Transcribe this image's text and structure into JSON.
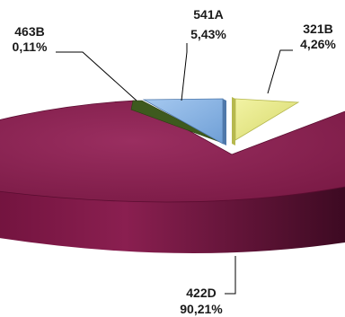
{
  "chart_data": {
    "type": "pie",
    "style": "3d-exploded",
    "title": "",
    "slices": [
      {
        "name": "422D",
        "value": 90.21,
        "label": "90,21%",
        "color": "#8b1e4f"
      },
      {
        "name": "321B",
        "value": 4.26,
        "label": "4,26%",
        "color": "#e6e87e"
      },
      {
        "name": "541A",
        "value": 5.43,
        "label": "5,43%",
        "color": "#8fb8e6"
      },
      {
        "name": "463B",
        "value": 0.11,
        "label": "0,11%",
        "color": "#3e5a1e"
      }
    ],
    "legend": "none",
    "grid": false
  }
}
